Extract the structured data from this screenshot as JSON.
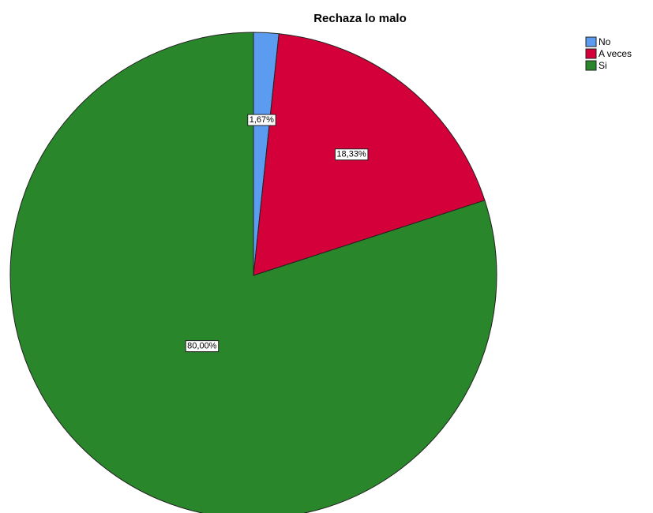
{
  "chart_data": {
    "type": "pie",
    "title": "Rechaza lo malo",
    "categories": [
      "No",
      "A veces",
      "Si"
    ],
    "values": [
      1.67,
      18.33,
      80.0
    ],
    "value_labels": [
      "1,67%",
      "18,33%",
      "80,00%"
    ],
    "colors": [
      "#5b9cf0",
      "#d4003a",
      "#2a862a"
    ],
    "legend": "top-right"
  }
}
